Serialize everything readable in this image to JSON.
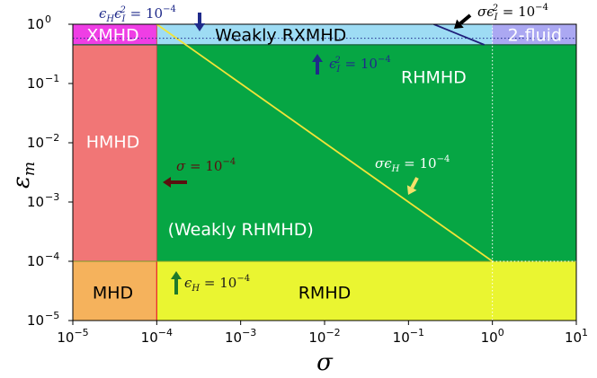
{
  "chart_data": {
    "type": "region-diagram",
    "xscale": "log",
    "yscale": "log",
    "xlim": [
      1e-05,
      10
    ],
    "ylim": [
      1e-05,
      1
    ],
    "xlabel": "σ",
    "ylabel": "ε",
    "ylabel_sub": "m",
    "xticks": [
      {
        "value": 1e-05,
        "base": "10",
        "exp": "−5"
      },
      {
        "value": 0.0001,
        "base": "10",
        "exp": "−4"
      },
      {
        "value": 0.001,
        "base": "10",
        "exp": "−3"
      },
      {
        "value": 0.01,
        "base": "10",
        "exp": "−2"
      },
      {
        "value": 0.1,
        "base": "10",
        "exp": "−1"
      },
      {
        "value": 1,
        "base": "10",
        "exp": "0"
      },
      {
        "value": 10,
        "base": "10",
        "exp": "1"
      }
    ],
    "yticks": [
      {
        "value": 1e-05,
        "base": "10",
        "exp": "−5"
      },
      {
        "value": 0.0001,
        "base": "10",
        "exp": "−4"
      },
      {
        "value": 0.001,
        "base": "10",
        "exp": "−3"
      },
      {
        "value": 0.01,
        "base": "10",
        "exp": "−2"
      },
      {
        "value": 0.1,
        "base": "10",
        "exp": "−1"
      },
      {
        "value": 1,
        "base": "10",
        "exp": "0"
      }
    ],
    "regions": [
      {
        "name": "MHD",
        "x": [
          1e-05,
          0.0001
        ],
        "y": [
          1e-05,
          0.0001
        ],
        "color": "#f5b25c",
        "label": "MHD",
        "label_at": [
          3e-05,
          3e-05
        ],
        "light": false
      },
      {
        "name": "RMHD",
        "x": [
          0.0001,
          10
        ],
        "y": [
          1e-05,
          0.0001
        ],
        "color": "#eaf531",
        "label": "RMHD",
        "label_at": [
          0.01,
          3e-05
        ],
        "light": false
      },
      {
        "name": "HMHD",
        "x": [
          1e-05,
          0.0001
        ],
        "y": [
          0.0001,
          0.45
        ],
        "color": "#f17676",
        "label": "HMHD",
        "label_at": [
          3e-05,
          0.0105
        ],
        "light": true
      },
      {
        "name": "RHMHD",
        "x": [
          0.0001,
          10
        ],
        "y": [
          0.0001,
          0.45
        ],
        "color": "#06a644",
        "label": "RHMHD",
        "label_at": [
          0.2,
          0.13
        ],
        "light": true
      },
      {
        "name": "weakly-rhmhd",
        "x": [
          0.0001,
          10
        ],
        "y": [
          0.0001,
          0.45
        ],
        "color": null,
        "label": "(Weakly RHMHD)",
        "label_at": [
          0.001,
          0.00035
        ],
        "light": true
      },
      {
        "name": "XMHD",
        "x": [
          1e-05,
          0.0001
        ],
        "y": [
          0.45,
          1
        ],
        "color": "#ef3ee5",
        "label": "XMHD",
        "label_at": [
          3e-05,
          0.67
        ],
        "light": true
      },
      {
        "name": "weakly-rxmhd",
        "x": [
          0.0001,
          1
        ],
        "y": [
          0.45,
          1
        ],
        "color": "#9edcf4",
        "label": "Weakly RXMHD",
        "label_at": [
          0.003,
          0.67
        ],
        "light": false
      },
      {
        "name": "two-fluid",
        "x": [
          1,
          10
        ],
        "y": [
          0.45,
          1
        ],
        "color": "#aba8f2",
        "label": "2-fluid",
        "label_at": [
          3.2,
          0.67
        ],
        "light": true
      }
    ],
    "boundaries": [
      {
        "name": "sigma-epsH-line",
        "points": [
          [
            0.0001,
            1
          ],
          [
            1,
            0.0001
          ]
        ],
        "color": "#f2e438"
      },
      {
        "name": "sigma-epsI2-line",
        "points": [
          [
            0.2,
            1
          ],
          [
            0.8,
            0.45
          ]
        ],
        "color": "#1f1f7a"
      }
    ],
    "annotations": [
      {
        "name": "epsH-epsI2-annotation",
        "text": "ϵ_H ϵ_I^2 = 10^{−4}",
        "pre": "ϵ",
        "sub1": "H",
        "mid": "ϵ",
        "sub2": "I",
        "sup2": "2",
        "eq": " = 10",
        "exp": "−4",
        "color": "#1f2a8a",
        "arrow": "down"
      },
      {
        "name": "epsI2-annotation",
        "text": "ϵ_I^2 = 10^{−4}",
        "pre": "ϵ",
        "sub1": "I",
        "sup1": "2",
        "eq": " = 10",
        "exp": "−4",
        "color": "#1f2a8a",
        "arrow": "up"
      },
      {
        "name": "sigma-epsI2-annotation",
        "text": "σϵ_I^2 = 10^{−4}",
        "pre": "σϵ",
        "sub1": "I",
        "sup1": "2",
        "eq": " = 10",
        "exp": "−4",
        "color": "#000000",
        "arrow": "down-left"
      },
      {
        "name": "sigma-annotation",
        "text": "σ = 10^{−4}",
        "pre": "σ",
        "eq": " = 10",
        "exp": "−4",
        "color": "#5a0f0f",
        "arrow": "left"
      },
      {
        "name": "sigma-epsH-annotation",
        "text": "σϵ_H = 10^{−4}",
        "pre": "σϵ",
        "sub1": "H",
        "eq": " = 10",
        "exp": "−4",
        "color": "#ffffff",
        "arrow": "down-left"
      },
      {
        "name": "epsH-annotation",
        "text": "ϵ_H = 10^{−4}",
        "pre": "ϵ",
        "sub1": "H",
        "eq": " = 10",
        "exp": "−4",
        "color": "#1a1a1a",
        "arrow": "up"
      }
    ]
  }
}
